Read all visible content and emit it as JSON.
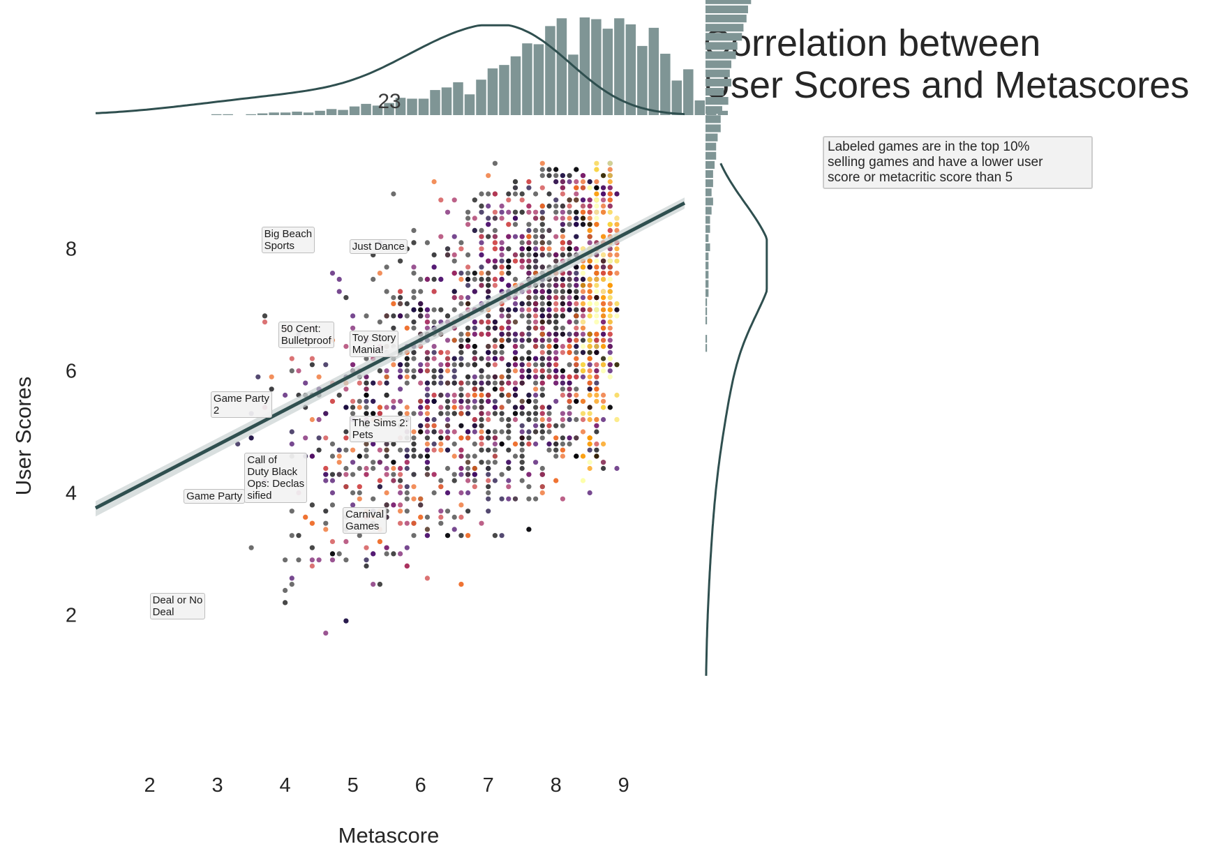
{
  "title_lines": [
    "Correlation between",
    "User Scores and Metascores"
  ],
  "note": "Labeled games are in the top 10%\nselling games and have a lower user\nscore or metacritic score than 5",
  "colors": {
    "hist": "#7f9595",
    "line": "#2f4f4f",
    "ci": "#c9d2d2"
  },
  "chart_data": {
    "type": "scatter",
    "xlabel": "Metascore",
    "ylabel": "User Scores",
    "xlim": [
      1.2,
      9.9
    ],
    "ylim": [
      -0.1,
      9.7
    ],
    "xticks": [
      2,
      3,
      4,
      5,
      6,
      7,
      8,
      9
    ],
    "yticks": [
      2,
      4,
      6,
      8
    ],
    "marginal_x_text": "23",
    "regression": {
      "x": [
        1.2,
        9.9
      ],
      "y": [
        3.75,
        8.75
      ]
    },
    "marginal_x_hist": {
      "bin_start": 1.2,
      "bin_width": 0.17,
      "counts": [
        0,
        0,
        0,
        0,
        0,
        0,
        0,
        0,
        0,
        0,
        1,
        1,
        0,
        1,
        2,
        3,
        3,
        4,
        3,
        5,
        7,
        6,
        10,
        13,
        11,
        14,
        20,
        19,
        19,
        29,
        32,
        38,
        24,
        41,
        54,
        58,
        68,
        83,
        82,
        103,
        112,
        70,
        113,
        111,
        100,
        112,
        105,
        80,
        101,
        71,
        40,
        53,
        17,
        8,
        5
      ]
    },
    "marginal_y_hist": {
      "bin_start": 0.6,
      "bin_width": 0.15,
      "counts": [
        0,
        0,
        0,
        0,
        0,
        0,
        0,
        0,
        0,
        0,
        0,
        0,
        0,
        0,
        0,
        0,
        0,
        0,
        0,
        0,
        0,
        0,
        0,
        0,
        0,
        0,
        0,
        0,
        0,
        0,
        0,
        0,
        0,
        0,
        0,
        0,
        0,
        0,
        1,
        1,
        0,
        1,
        1,
        1,
        2,
        2,
        2,
        2,
        2,
        3,
        2,
        3,
        3,
        4,
        5,
        4,
        5,
        5,
        6,
        7,
        7,
        8,
        10,
        10,
        11,
        15,
        12,
        17,
        16,
        17,
        20,
        21,
        24,
        25,
        27,
        28,
        30,
        33,
        34,
        42,
        45,
        32,
        44,
        38,
        44,
        53,
        35,
        52,
        41,
        62,
        54,
        58,
        60,
        42,
        32,
        26,
        35,
        20,
        11,
        5,
        3,
        0
      ]
    },
    "labels": [
      {
        "text": "Big Beach\nSports",
        "x": 3.65,
        "y": 8.2
      },
      {
        "text": "Just Dance",
        "x": 4.95,
        "y": 8.0
      },
      {
        "text": "50 Cent:\nBulletproof",
        "x": 3.9,
        "y": 6.65
      },
      {
        "text": "Toy Story\nMania!",
        "x": 4.95,
        "y": 6.5
      },
      {
        "text": "Game Party\n2",
        "x": 2.9,
        "y": 5.5
      },
      {
        "text": "The Sims 2:\nPets",
        "x": 4.95,
        "y": 5.1
      },
      {
        "text": "Call of\nDuty Black\nOps: Declas\nsified",
        "x": 3.4,
        "y": 4.5
      },
      {
        "text": "Game Party",
        "x": 2.5,
        "y": 3.9
      },
      {
        "text": "Carnival\nGames",
        "x": 4.85,
        "y": 3.6
      },
      {
        "text": "Deal or No\nDeal",
        "x": 2.0,
        "y": 2.2
      }
    ]
  }
}
